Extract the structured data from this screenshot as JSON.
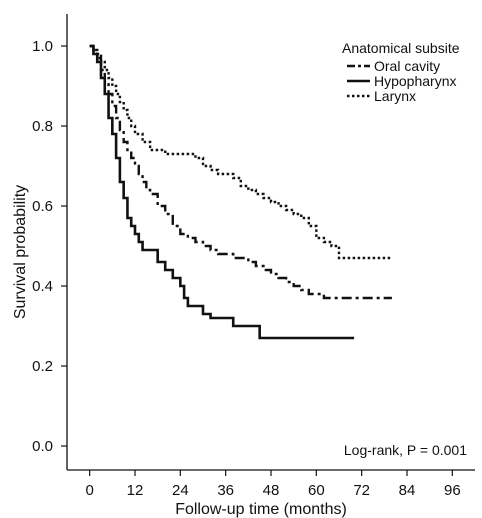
{
  "chart_data": {
    "type": "line",
    "xlabel": "Follow-up time (months)",
    "ylabel": "Survival probability",
    "xlim": [
      -6,
      102
    ],
    "ylim": [
      -0.06,
      1.08
    ],
    "x_ticks": [
      0,
      12,
      24,
      36,
      48,
      60,
      72,
      84,
      96
    ],
    "x_tick_labels": [
      "0",
      "12",
      "24",
      "36",
      "48",
      "60",
      "72",
      "84",
      "96"
    ],
    "y_ticks": [
      0.0,
      0.2,
      0.4,
      0.6,
      0.8,
      1.0
    ],
    "y_tick_labels": [
      "0.0",
      "0.2",
      "0.4",
      "0.6",
      "0.8",
      "1.0"
    ],
    "grid": false,
    "legend": {
      "title": "Anatomical subsite",
      "position": "top-right"
    },
    "annotation": "Log-rank, P = 0.001",
    "series": [
      {
        "name": "Oral cavity",
        "style": "dashdot",
        "color": "#111111",
        "x": [
          0,
          1,
          2,
          3,
          4,
          5,
          6,
          7,
          8,
          9,
          10,
          11,
          12,
          13,
          14,
          15,
          16,
          18,
          20,
          22,
          24,
          26,
          28,
          30,
          32,
          34,
          36,
          38,
          40,
          42,
          44,
          46,
          48,
          50,
          52,
          54,
          56,
          58,
          60,
          62,
          64,
          66,
          68,
          70,
          72,
          74,
          76,
          78,
          80
        ],
        "y": [
          1.0,
          0.99,
          0.97,
          0.94,
          0.91,
          0.88,
          0.85,
          0.82,
          0.79,
          0.76,
          0.74,
          0.72,
          0.7,
          0.68,
          0.66,
          0.64,
          0.63,
          0.6,
          0.58,
          0.55,
          0.53,
          0.52,
          0.51,
          0.5,
          0.49,
          0.48,
          0.48,
          0.47,
          0.47,
          0.46,
          0.45,
          0.44,
          0.43,
          0.42,
          0.41,
          0.4,
          0.39,
          0.38,
          0.38,
          0.37,
          0.37,
          0.37,
          0.37,
          0.37,
          0.37,
          0.37,
          0.37,
          0.37,
          0.37
        ]
      },
      {
        "name": "Hypopharynx",
        "style": "solid",
        "color": "#111111",
        "x": [
          0,
          1,
          2,
          3,
          4,
          5,
          6,
          7,
          8,
          9,
          10,
          11,
          12,
          13,
          14,
          16,
          18,
          20,
          22,
          24,
          25,
          26,
          30,
          32,
          36,
          38,
          40,
          44,
          45,
          48,
          56,
          60,
          64,
          66,
          70
        ],
        "y": [
          1.0,
          0.98,
          0.96,
          0.92,
          0.88,
          0.82,
          0.78,
          0.72,
          0.66,
          0.62,
          0.57,
          0.55,
          0.53,
          0.51,
          0.49,
          0.49,
          0.46,
          0.44,
          0.42,
          0.4,
          0.37,
          0.35,
          0.33,
          0.32,
          0.32,
          0.3,
          0.3,
          0.3,
          0.27,
          0.27,
          0.27,
          0.27,
          0.27,
          0.27,
          0.27
        ]
      },
      {
        "name": "Larynx",
        "style": "dotted",
        "color": "#111111",
        "x": [
          0,
          1,
          2,
          3,
          4,
          5,
          6,
          7,
          8,
          9,
          10,
          11,
          12,
          14,
          16,
          18,
          20,
          22,
          24,
          26,
          28,
          30,
          32,
          34,
          36,
          38,
          40,
          42,
          44,
          46,
          48,
          50,
          52,
          54,
          56,
          58,
          60,
          62,
          64,
          66,
          68,
          70,
          72,
          74,
          76,
          78,
          80
        ],
        "y": [
          1.0,
          0.99,
          0.98,
          0.96,
          0.94,
          0.92,
          0.9,
          0.88,
          0.86,
          0.84,
          0.82,
          0.8,
          0.78,
          0.76,
          0.74,
          0.74,
          0.73,
          0.73,
          0.73,
          0.73,
          0.72,
          0.7,
          0.69,
          0.68,
          0.68,
          0.67,
          0.65,
          0.64,
          0.63,
          0.62,
          0.61,
          0.6,
          0.59,
          0.58,
          0.57,
          0.55,
          0.52,
          0.51,
          0.5,
          0.47,
          0.47,
          0.47,
          0.47,
          0.47,
          0.47,
          0.47,
          0.47
        ]
      }
    ]
  }
}
